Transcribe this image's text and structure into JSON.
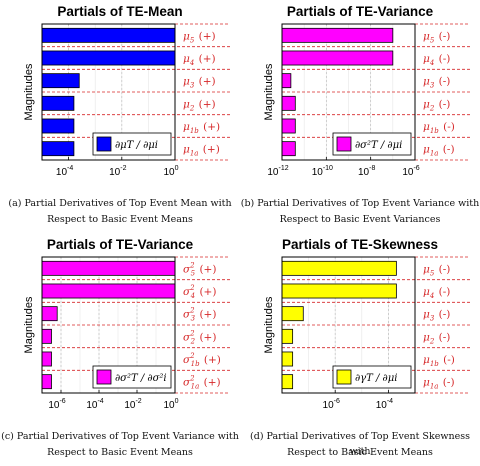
{
  "chart_data": [
    {
      "type": "bar",
      "orientation": "horizontal",
      "title": "Partials of TE-Mean",
      "ylabel": "Magnitudes",
      "xscale": "log",
      "xlim_exp": [
        -5,
        0
      ],
      "xtick_exps": [
        -4,
        -2,
        0
      ],
      "bar_color": "#0000ff",
      "categories": [
        "μ5 (+)",
        "μ4 (+)",
        "μ3 (+)",
        "μ2 (+)",
        "μ1b (+)",
        "μ1a (+)"
      ],
      "cat_main": [
        "μ",
        "μ",
        "μ",
        "μ",
        "μ",
        "μ"
      ],
      "cat_sub": [
        "5",
        "4",
        "3",
        "2",
        "1b",
        "1a"
      ],
      "cat_sup": [
        "",
        "",
        "",
        "",
        "",
        ""
      ],
      "cat_sign": [
        "(+)",
        "(+)",
        "(+)",
        "(+)",
        "(+)",
        "(+)"
      ],
      "values_exp": [
        0,
        0,
        -3.6,
        -3.8,
        -3.8,
        -3.8
      ],
      "legend": {
        "text": "∂μT / ∂μi",
        "position": "bottom-right"
      },
      "caption_lines": [
        "(a) Partial Derivatives of Top Event Mean with",
        "Respect to Basic Event Means"
      ]
    },
    {
      "type": "bar",
      "orientation": "horizontal",
      "title": "Partials of TE-Variance",
      "ylabel": "Magnitudes",
      "xscale": "log",
      "xlim_exp": [
        -12,
        -6
      ],
      "xtick_exps": [
        -12,
        -10,
        -8,
        -6
      ],
      "bar_color": "#ff00ff",
      "categories": [
        "μ5 (-)",
        "μ4 (-)",
        "μ3 (-)",
        "μ2 (-)",
        "μ1b (-)",
        "μ1a (-)"
      ],
      "cat_main": [
        "μ",
        "μ",
        "μ",
        "μ",
        "μ",
        "μ"
      ],
      "cat_sub": [
        "5",
        "4",
        "3",
        "2",
        "1b",
        "1a"
      ],
      "cat_sup": [
        "",
        "",
        "",
        "",
        "",
        ""
      ],
      "cat_sign": [
        "(-)",
        "(-)",
        "(-)",
        "(-)",
        "(-)",
        "(-)"
      ],
      "values_exp": [
        -7,
        -7,
        -11.6,
        -11.4,
        -11.4,
        -11.4
      ],
      "legend": {
        "text": "∂σ²T / ∂μi",
        "position": "bottom-right"
      },
      "caption_lines": [
        "(b) Partial Derivatives of Top Event Variance with",
        "Respect to Basic Event Variances"
      ]
    },
    {
      "type": "bar",
      "orientation": "horizontal",
      "title": "Partials of TE-Variance",
      "ylabel": "Magnitudes",
      "xscale": "log",
      "xlim_exp": [
        -7,
        0
      ],
      "xtick_exps": [
        -6,
        -4,
        -2,
        0
      ],
      "bar_color": "#ff00ff",
      "categories": [
        "σ²5 (+)",
        "σ²4 (+)",
        "σ²3 (+)",
        "σ²2 (+)",
        "σ²1b (+)",
        "σ²1a (+)"
      ],
      "cat_main": [
        "σ",
        "σ",
        "σ",
        "σ",
        "σ",
        "σ"
      ],
      "cat_sub": [
        "5",
        "4",
        "3",
        "2",
        "1b",
        "1a"
      ],
      "cat_sup": [
        "2",
        "2",
        "2",
        "2",
        "2",
        "2"
      ],
      "cat_sign": [
        "(+)",
        "(+)",
        "(+)",
        "(+)",
        "(+)",
        "(+)"
      ],
      "values_exp": [
        0,
        0,
        -6.2,
        -6.5,
        -6.5,
        -6.5
      ],
      "legend": {
        "text": "∂σ²T / ∂σ²i",
        "position": "bottom-right"
      },
      "caption_lines": [
        "(c) Partial Derivatives of Top Event Variance with",
        "Respect to Basic Event Means"
      ]
    },
    {
      "type": "bar",
      "orientation": "horizontal",
      "title": "Partials of TE-Skewness",
      "ylabel": "Magnitudes",
      "xscale": "log",
      "xlim_exp": [
        -8,
        -3
      ],
      "xtick_exps": [
        -6,
        -4
      ],
      "bar_color": "#ffff00",
      "categories": [
        "μ5 (-)",
        "μ4 (-)",
        "μ3 (-)",
        "μ2 (-)",
        "μ1b (-)",
        "μ1a (-)"
      ],
      "cat_main": [
        "μ",
        "μ",
        "μ",
        "μ",
        "μ",
        "μ"
      ],
      "cat_sub": [
        "5",
        "4",
        "3",
        "2",
        "1b",
        "1a"
      ],
      "cat_sup": [
        "",
        "",
        "",
        "",
        "",
        ""
      ],
      "cat_sign": [
        "(-)",
        "(-)",
        "(-)",
        "(-)",
        "(-)",
        "(-)"
      ],
      "values_exp": [
        -3.7,
        -3.7,
        -7.2,
        -7.6,
        -7.6,
        -7.6
      ],
      "legend": {
        "text": "∂γT / ∂μi",
        "position": "bottom-right"
      },
      "caption_lines": [
        "(d) Partial Derivatives of Top Event Skewness with",
        "Respect to Basic Event Means"
      ]
    }
  ]
}
